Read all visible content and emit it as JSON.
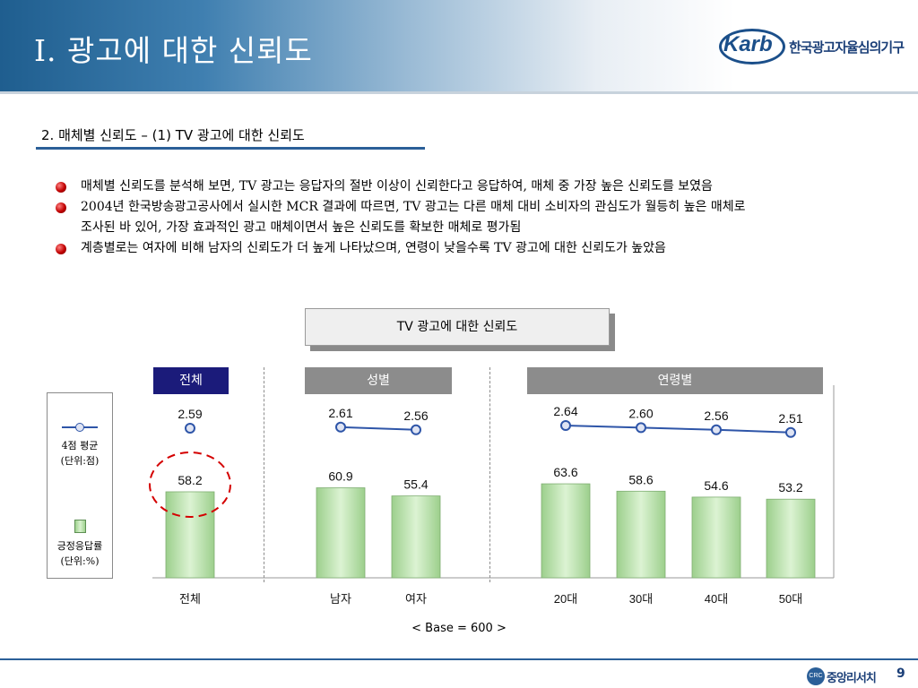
{
  "title": "Ⅰ. 광고에 대한 신뢰도",
  "logo": {
    "mark": "Karb",
    "name": "한국광고자율심의기구"
  },
  "section_title": "2. 매체별 신뢰도 – (1) TV 광고에 대한 신뢰도",
  "bullets": [
    "매체별 신뢰도를 분석해 보면, TV 광고는 응답자의 절반 이상이 신뢰한다고 응답하여, 매체 중 가장 높은 신뢰도를 보였음",
    "2004년 한국방송광고공사에서 실시한 MCR 결과에 따르면, TV 광고는 다른 매체 대비 소비자의 관심도가 월등히 높은 매체로",
    "조사된 바 있어, 가장 효과적인 광고 매체이면서 높은 신뢰도를 확보한 매체로 평가됨",
    "계층별로는 여자에 비해 남자의 신뢰도가 더 높게 나타났으며, 연령이 낮을수록 TV 광고에 대한 신뢰도가 높았음"
  ],
  "chart_title": "TV 광고에 대한 신뢰도",
  "group_headers": {
    "total": "전체",
    "gender": "성별",
    "age": "연령별"
  },
  "legend": {
    "line_label": "4점 평균\n(단위:점)",
    "bar_label": "긍정응답률\n(단위:%)"
  },
  "colors": {
    "header_total": "#1b1b7a",
    "header_group": "#8c8c8c",
    "bar": "#b8e3ab",
    "line": "#2e55a8",
    "highlight": "#d40000"
  },
  "chart_data": {
    "type": "bar",
    "categories": [
      "전체",
      "남자",
      "여자",
      "20대",
      "30대",
      "40대",
      "50대"
    ],
    "series": [
      {
        "name": "긍정응답률",
        "values": [
          58.2,
          60.9,
          55.4,
          63.6,
          58.6,
          54.6,
          53.2
        ]
      },
      {
        "name": "4점 평균",
        "values": [
          2.59,
          2.61,
          2.56,
          2.64,
          2.6,
          2.56,
          2.51
        ]
      }
    ],
    "highlighted_category": "전체"
  },
  "base_note": "< Base = 600 >",
  "footer": {
    "logo_mark": "CRC",
    "logo_name": "중앙리서치",
    "page": "9"
  }
}
